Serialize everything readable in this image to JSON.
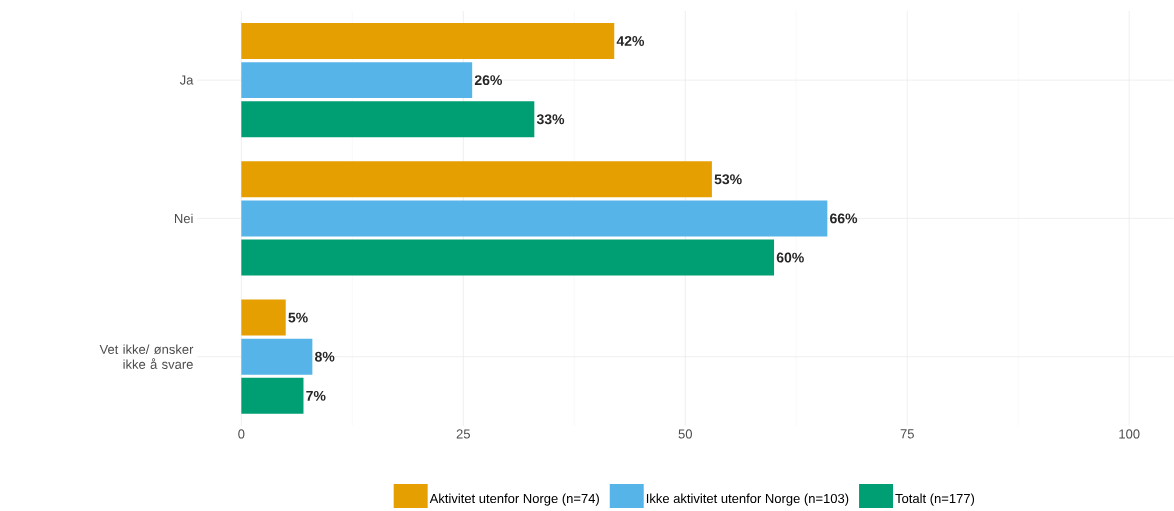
{
  "chart_data": {
    "type": "bar",
    "orientation": "horizontal",
    "categories": [
      "Ja",
      "Nei",
      "Vet ikke/ ønsker ikke å svare"
    ],
    "series": [
      {
        "name": "Aktivitet utenfor Norge (n=74)",
        "color": "#e69f00",
        "values": [
          42,
          53,
          5
        ],
        "value_labels": [
          "42%",
          "53%",
          "5%"
        ]
      },
      {
        "name": "Ikke aktivitet utenfor Norge (n=103)",
        "color": "#56b4e9",
        "values": [
          26,
          66,
          8
        ],
        "value_labels": [
          "26%",
          "66%",
          "8%"
        ]
      },
      {
        "name": "Totalt (n=177)",
        "color": "#009e73",
        "values": [
          33,
          60,
          7
        ],
        "value_labels": [
          "33%",
          "60%",
          "7%"
        ]
      }
    ],
    "xlim": [
      -5,
      105
    ],
    "xticks": [
      0,
      25,
      50,
      75,
      100
    ],
    "grid": true,
    "legend": "bottom"
  }
}
